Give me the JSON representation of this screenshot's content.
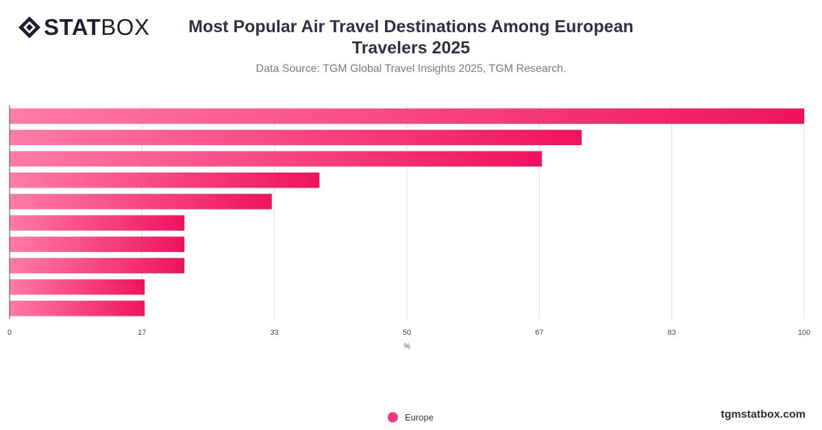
{
  "brand": {
    "logo_bold": "STAT",
    "logo_light": "BOX",
    "credit": "tgmstatbox.com"
  },
  "title": "Most Popular Air Travel Destinations Among European Travelers 2025",
  "subtitle": "Data Source: TGM Global Travel Insights 2025, TGM Research.",
  "colors": {
    "bar_start": "#ff7ba6",
    "bar_end": "#f0125f",
    "legend": "#f2377a",
    "grid": "#dddddd",
    "axis": "#444444"
  },
  "chart_data": {
    "type": "bar",
    "orientation": "horizontal",
    "categories": [
      "",
      "",
      "",
      "",
      "",
      "",
      "",
      "",
      "",
      ""
    ],
    "series": [
      {
        "name": "Europe",
        "values": [
          100,
          72,
          67,
          39,
          33,
          22,
          22,
          22,
          17,
          17
        ]
      }
    ],
    "xlabel": "%",
    "xlim": [
      0,
      100
    ],
    "xticks": [
      "0",
      "17",
      "33",
      "50",
      "67",
      "83",
      "100"
    ],
    "grid": true,
    "legend_position": "bottom-center"
  }
}
